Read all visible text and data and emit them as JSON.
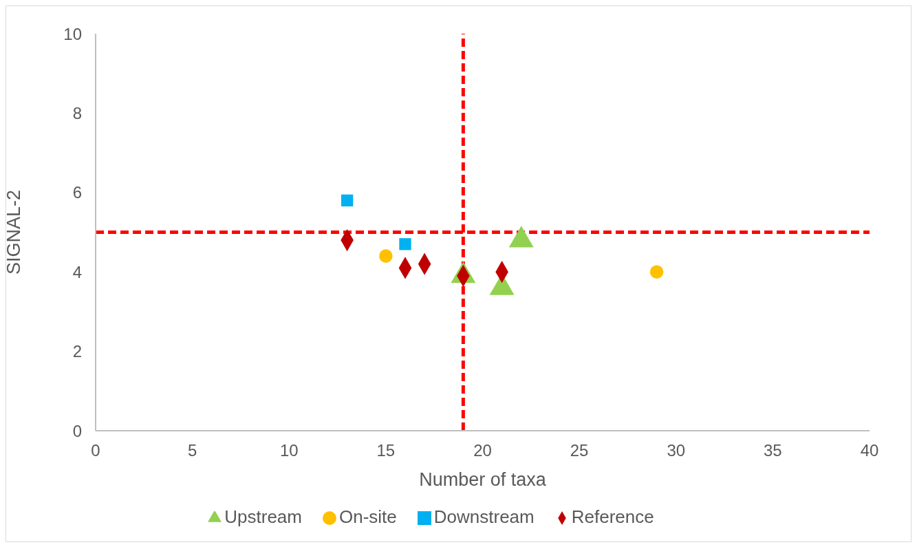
{
  "chart_data": {
    "type": "scatter",
    "xlabel": "Number of taxa",
    "ylabel": "SIGNAL-2",
    "xlim": [
      0,
      40
    ],
    "xticks": [
      0,
      5,
      10,
      15,
      20,
      25,
      30,
      35,
      40
    ],
    "ylim": [
      0,
      10
    ],
    "yticks": [
      0,
      2,
      4,
      6,
      8,
      10
    ],
    "grid": false,
    "legend": "bottom",
    "series": [
      {
        "name": "Upstream",
        "color": "#92d050",
        "marker": "triangle",
        "x": [
          19,
          21,
          22
        ],
        "values": [
          3.9,
          3.6,
          4.8
        ]
      },
      {
        "name": "On-site",
        "color": "#ffc000",
        "marker": "circle",
        "x": [
          15,
          29
        ],
        "values": [
          4.4,
          4.0
        ]
      },
      {
        "name": "Downstream",
        "color": "#00b0f0",
        "marker": "square",
        "x": [
          13,
          16
        ],
        "values": [
          5.8,
          4.7
        ]
      },
      {
        "name": "Reference",
        "color": "#c00000",
        "marker": "diamond",
        "x": [
          13,
          16,
          17,
          19,
          21
        ],
        "values": [
          4.8,
          4.1,
          4.2,
          3.9,
          4.0
        ]
      }
    ],
    "ref_lines": [
      {
        "axis": "x",
        "value": 19,
        "color": "#ff0000",
        "line_style": "dashed"
      },
      {
        "axis": "y",
        "value": 5,
        "color": "#ff0000",
        "line_style": "dashed"
      }
    ]
  }
}
